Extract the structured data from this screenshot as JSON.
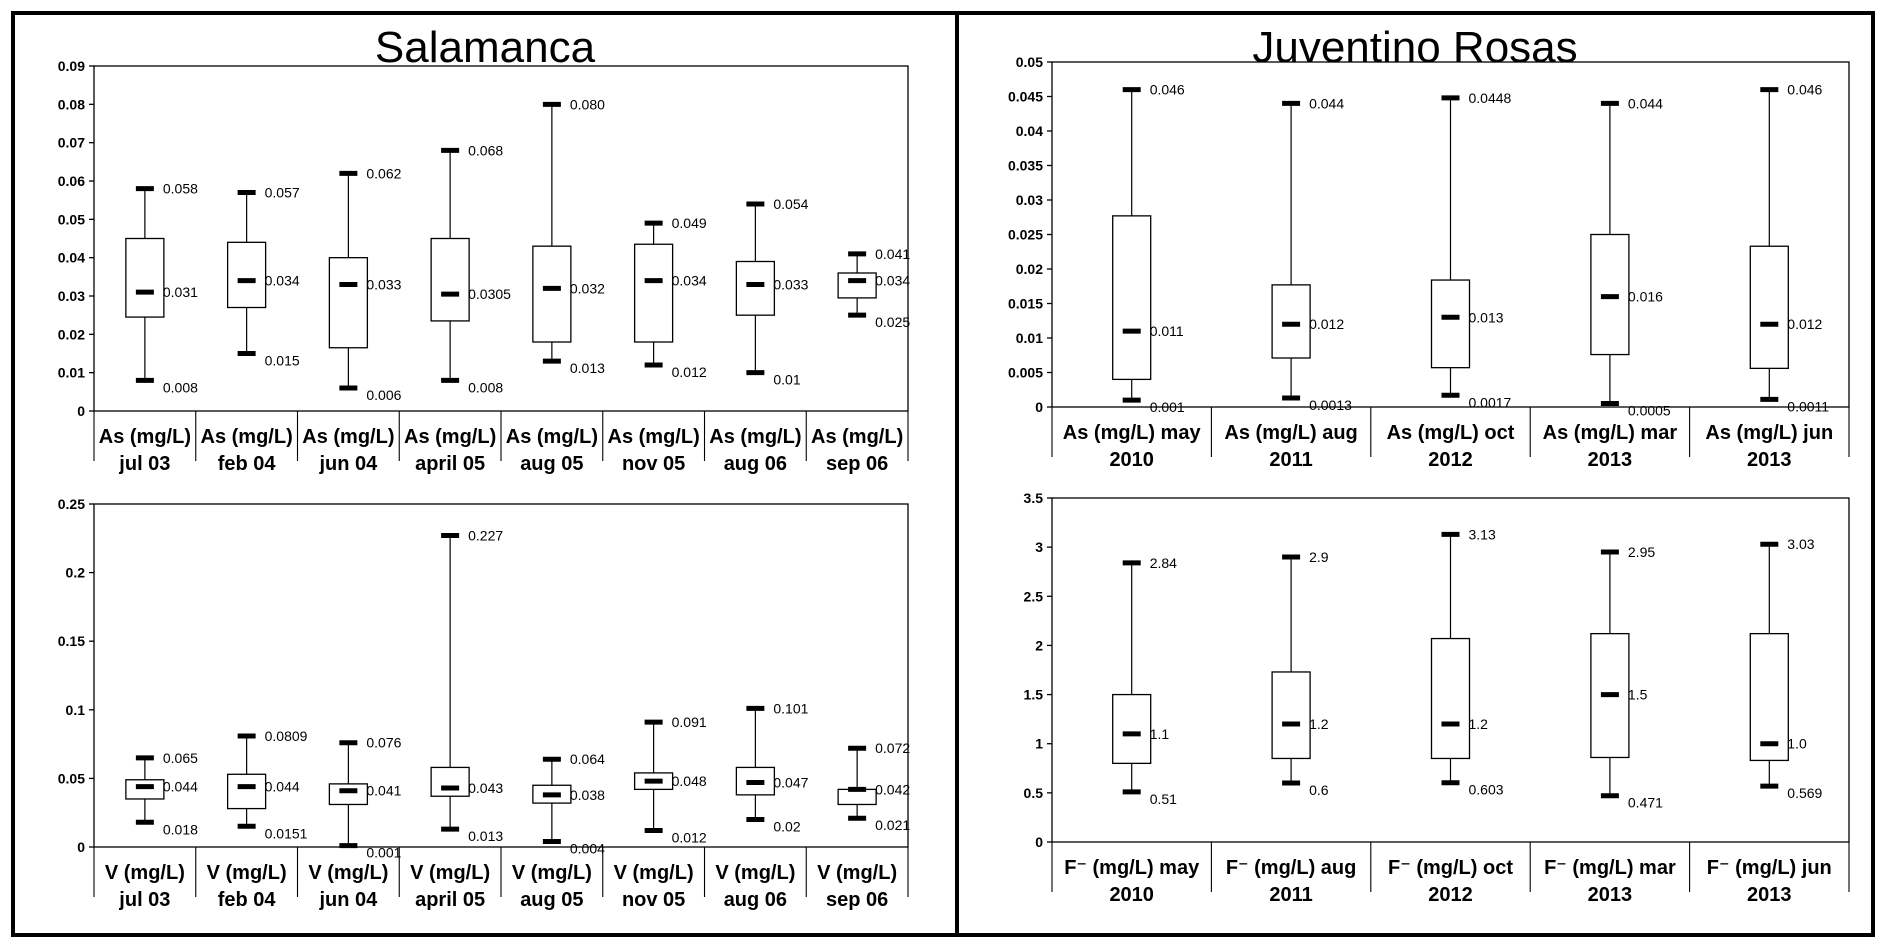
{
  "panels": {
    "left_title": "Salamanca",
    "right_title": "Juventino Rosas"
  },
  "chart_data": [
    {
      "id": "as-salamanca",
      "type": "box",
      "panel": "Salamanca",
      "ylim": [
        0,
        0.09
      ],
      "yticks": [
        "0",
        "0.01",
        "0.02",
        "0.03",
        "0.04",
        "0.05",
        "0.06",
        "0.07",
        "0.08",
        "0.09"
      ],
      "categories": [
        [
          "As (mg/L)",
          "jul 03"
        ],
        [
          "As (mg/L)",
          "feb 04"
        ],
        [
          "As (mg/L)",
          "jun 04"
        ],
        [
          "As (mg/L)",
          "april 05"
        ],
        [
          "As (mg/L)",
          "aug 05"
        ],
        [
          "As (mg/L)",
          "nov 05"
        ],
        [
          "As (mg/L)",
          "aug 06"
        ],
        [
          "As (mg/L)",
          "sep 06"
        ]
      ],
      "series": [
        {
          "min": 0.008,
          "q1": 0.0245,
          "median": 0.031,
          "q3": 0.045,
          "max": 0.058,
          "label_max": "0.058",
          "label_median": "0.031",
          "label_min": "0.008"
        },
        {
          "min": 0.015,
          "q1": 0.027,
          "median": 0.034,
          "q3": 0.044,
          "max": 0.057,
          "label_max": "0.057",
          "label_median": "0.034",
          "label_min": "0.015"
        },
        {
          "min": 0.006,
          "q1": 0.0165,
          "median": 0.033,
          "q3": 0.04,
          "max": 0.062,
          "label_max": "0.062",
          "label_median": "0.033",
          "label_min": "0.006"
        },
        {
          "min": 0.008,
          "q1": 0.0235,
          "median": 0.0305,
          "q3": 0.045,
          "max": 0.068,
          "label_max": "0.068",
          "label_median": "0.0305",
          "label_min": "0.008"
        },
        {
          "min": 0.013,
          "q1": 0.018,
          "median": 0.032,
          "q3": 0.043,
          "max": 0.08,
          "label_max": "0.080",
          "label_median": "0.032",
          "label_min": "0.013"
        },
        {
          "min": 0.012,
          "q1": 0.018,
          "median": 0.034,
          "q3": 0.0435,
          "max": 0.049,
          "label_max": "0.049",
          "label_median": "0.034",
          "label_min": "0.012"
        },
        {
          "min": 0.01,
          "q1": 0.025,
          "median": 0.033,
          "q3": 0.039,
          "max": 0.054,
          "label_max": "0.054",
          "label_median": "0.033",
          "label_min": "0.01"
        },
        {
          "min": 0.025,
          "q1": 0.0295,
          "median": 0.034,
          "q3": 0.036,
          "max": 0.041,
          "label_max": "0.041",
          "label_median": "0.034",
          "label_min": "0.025"
        }
      ]
    },
    {
      "id": "v-salamanca",
      "type": "box",
      "panel": "Salamanca",
      "ylim": [
        0,
        0.25
      ],
      "yticks": [
        "0",
        "0.05",
        "0.1",
        "0.15",
        "0.2",
        "0.25"
      ],
      "categories": [
        [
          "V (mg/L)",
          "jul 03"
        ],
        [
          "V (mg/L)",
          "feb 04"
        ],
        [
          "V (mg/L)",
          "jun 04"
        ],
        [
          "V (mg/L)",
          "april 05"
        ],
        [
          "V (mg/L)",
          "aug 05"
        ],
        [
          "V (mg/L)",
          "nov 05"
        ],
        [
          "V (mg/L)",
          "aug 06"
        ],
        [
          "V (mg/L)",
          "sep 06"
        ]
      ],
      "series": [
        {
          "min": 0.018,
          "q1": 0.035,
          "median": 0.044,
          "q3": 0.049,
          "max": 0.065,
          "label_max": "0.065",
          "label_median": "0.044",
          "label_min": "0.018"
        },
        {
          "min": 0.0151,
          "q1": 0.028,
          "median": 0.044,
          "q3": 0.053,
          "max": 0.0809,
          "label_max": "0.0809",
          "label_median": "0.044",
          "label_min": "0.0151"
        },
        {
          "min": 0.001,
          "q1": 0.031,
          "median": 0.041,
          "q3": 0.046,
          "max": 0.076,
          "label_max": "0.076",
          "label_median": "0.041",
          "label_min": "0.001"
        },
        {
          "min": 0.013,
          "q1": 0.037,
          "median": 0.043,
          "q3": 0.058,
          "max": 0.227,
          "label_max": "0.227",
          "label_median": "0.043",
          "label_min": "0.013"
        },
        {
          "min": 0.004,
          "q1": 0.032,
          "median": 0.038,
          "q3": 0.045,
          "max": 0.064,
          "label_max": "0.064",
          "label_median": "0.038",
          "label_min": "0.004"
        },
        {
          "min": 0.012,
          "q1": 0.042,
          "median": 0.048,
          "q3": 0.054,
          "max": 0.091,
          "label_max": "0.091",
          "label_median": "0.048",
          "label_min": "0.012"
        },
        {
          "min": 0.02,
          "q1": 0.038,
          "median": 0.047,
          "q3": 0.058,
          "max": 0.101,
          "label_max": "0.101",
          "label_median": "0.047",
          "label_min": "0.02"
        },
        {
          "min": 0.021,
          "q1": 0.031,
          "median": 0.042,
          "q3": 0.042,
          "max": 0.072,
          "label_max": "0.072",
          "label_median": "0.042",
          "label_min": "0.021"
        }
      ]
    },
    {
      "id": "as-juventino",
      "type": "box",
      "panel": "Juventino Rosas",
      "ylim": [
        0,
        0.05
      ],
      "yticks": [
        "0",
        "0.005",
        "0.01",
        "0.015",
        "0.02",
        "0.025",
        "0.03",
        "0.035",
        "0.04",
        "0.045",
        "0.05"
      ],
      "categories": [
        [
          "As (mg/L) may",
          "2010"
        ],
        [
          "As (mg/L) aug",
          "2011"
        ],
        [
          "As (mg/L) oct",
          "2012"
        ],
        [
          "As (mg/L) mar",
          "2013"
        ],
        [
          "As (mg/L) jun",
          "2013"
        ]
      ],
      "series": [
        {
          "min": 0.001,
          "q1": 0.004,
          "median": 0.011,
          "q3": 0.0277,
          "max": 0.046,
          "label_max": "0.046",
          "label_median": "0.011",
          "label_min": "0.001"
        },
        {
          "min": 0.0013,
          "q1": 0.0071,
          "median": 0.012,
          "q3": 0.0177,
          "max": 0.044,
          "label_max": "0.044",
          "label_median": "0.012",
          "label_min": "0.0013"
        },
        {
          "min": 0.0017,
          "q1": 0.0057,
          "median": 0.013,
          "q3": 0.0184,
          "max": 0.0448,
          "label_max": "0.0448",
          "label_median": "0.013",
          "label_min": "0.0017"
        },
        {
          "min": 0.0005,
          "q1": 0.0076,
          "median": 0.016,
          "q3": 0.025,
          "max": 0.044,
          "label_max": "0.044",
          "label_median": "0.016",
          "label_min": "0.0005"
        },
        {
          "min": 0.0011,
          "q1": 0.0056,
          "median": 0.012,
          "q3": 0.0233,
          "max": 0.046,
          "label_max": "0.046",
          "label_median": "0.012",
          "label_min": "0.0011"
        }
      ]
    },
    {
      "id": "f-juventino",
      "type": "box",
      "panel": "Juventino Rosas",
      "ylim": [
        0,
        3.5
      ],
      "yticks": [
        "0",
        "0.5",
        "1",
        "1.5",
        "2",
        "2.5",
        "3",
        "3.5"
      ],
      "categories": [
        [
          "F⁻  (mg/L) may",
          "2010"
        ],
        [
          "F⁻  (mg/L) aug",
          "2011"
        ],
        [
          "F⁻  (mg/L) oct",
          "2012"
        ],
        [
          "F⁻ (mg/L) mar",
          "2013"
        ],
        [
          "F⁻ (mg/L) jun",
          "2013"
        ]
      ],
      "series": [
        {
          "min": 0.51,
          "q1": 0.8,
          "median": 1.1,
          "q3": 1.5,
          "max": 2.84,
          "label_max": "2.84",
          "label_median": "1.1",
          "label_min": "0.51"
        },
        {
          "min": 0.6,
          "q1": 0.85,
          "median": 1.2,
          "q3": 1.73,
          "max": 2.9,
          "label_max": "2.9",
          "label_median": "1.2",
          "label_min": "0.6"
        },
        {
          "min": 0.603,
          "q1": 0.85,
          "median": 1.2,
          "q3": 2.07,
          "max": 3.13,
          "label_max": "3.13",
          "label_median": "1.2",
          "label_min": "0.603"
        },
        {
          "min": 0.471,
          "q1": 0.86,
          "median": 1.5,
          "q3": 2.12,
          "max": 2.95,
          "label_max": "2.95",
          "label_median": "1.5",
          "label_min": "0.471"
        },
        {
          "min": 0.569,
          "q1": 0.83,
          "median": 1.0,
          "q3": 2.12,
          "max": 3.03,
          "label_max": "3.03",
          "label_median": "1.0",
          "label_min": "0.569"
        }
      ]
    }
  ]
}
